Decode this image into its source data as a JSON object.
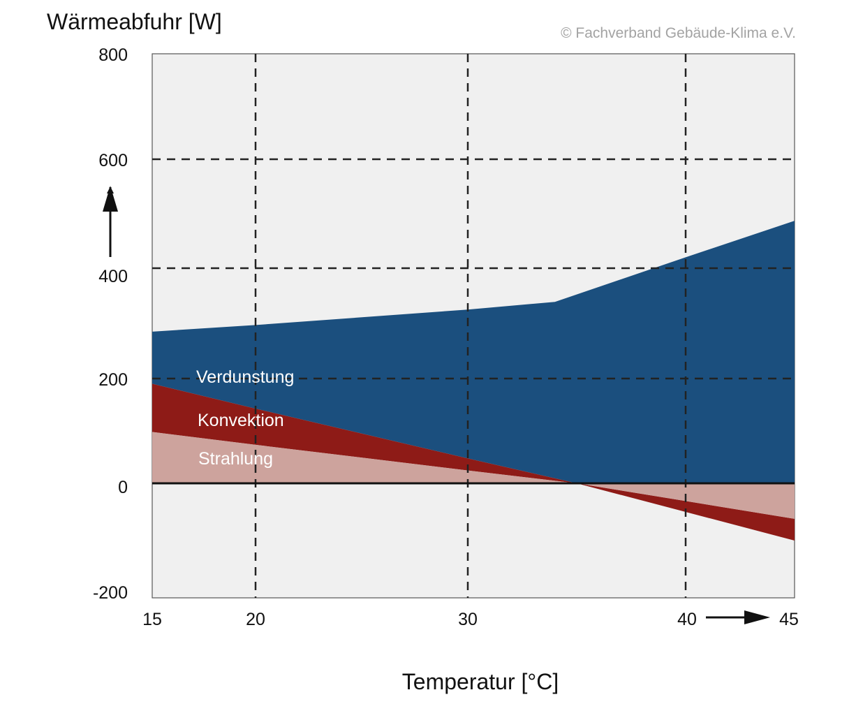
{
  "chart_data": {
    "type": "area",
    "ylabel": "Wärmeabfuhr [W]",
    "xlabel": "Temperatur [°C]",
    "copyright": "© Fachverband Gebäude-Klima e.V.",
    "xlim": [
      15,
      45
    ],
    "ylim": [
      -200,
      800
    ],
    "x_ticks": [
      "15",
      "20",
      "30",
      "40",
      "45"
    ],
    "y_ticks": [
      "800",
      "600",
      "400",
      "200",
      "0",
      "-200"
    ],
    "grid": "dashed",
    "series": [
      {
        "name": "Strahlung",
        "color": "#cda39d",
        "points": [
          [
            15,
            98
          ],
          [
            35,
            0
          ],
          [
            45,
            -62
          ]
        ]
      },
      {
        "name": "Konvektion",
        "color": "#8e1b17",
        "points": [
          [
            15,
            92
          ],
          [
            35,
            0
          ],
          [
            45,
            -38
          ]
        ]
      },
      {
        "name": "Verdunstung",
        "color": "#1b4f7e",
        "top_total": [
          [
            15,
            285
          ],
          [
            20,
            297
          ],
          [
            30,
            325
          ],
          [
            34,
            339
          ],
          [
            40,
            420
          ],
          [
            45,
            487
          ]
        ]
      }
    ]
  }
}
